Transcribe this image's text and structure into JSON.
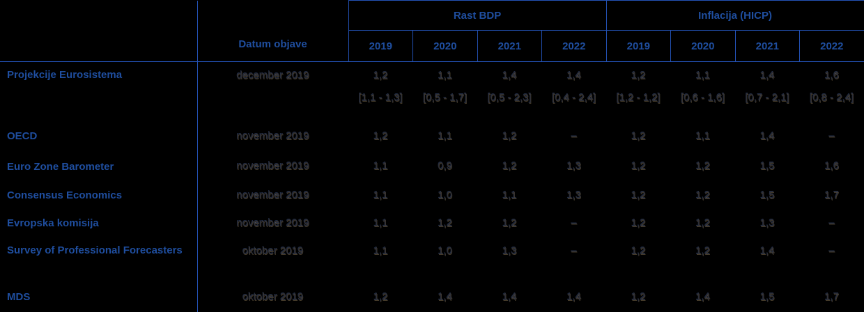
{
  "colors": {
    "background": "#000000",
    "grid_line_blue": "#2453B8",
    "header_text_blue": "#1F4E9F",
    "body_text_dark": "#2E2F36"
  },
  "chart_data": {
    "type": "table",
    "title": "",
    "header": {
      "datum_objave": "Datum objave",
      "groups": [
        {
          "label": "Rast BDP",
          "years": [
            "2019",
            "2020",
            "2021",
            "2022"
          ]
        },
        {
          "label": "Inflacija (HICP)",
          "years": [
            "2019",
            "2020",
            "2021",
            "2022"
          ]
        }
      ]
    },
    "rows": [
      {
        "label": "Projekcije Eurosistema",
        "date": "december 2019",
        "values": [
          "1,2",
          "1,1",
          "1,4",
          "1,4",
          "1,2",
          "1,1",
          "1,4",
          "1,6"
        ],
        "ranges": [
          "[1,1 - 1,3]",
          "[0,5 - 1,7]",
          "[0,5 - 2,3]",
          "[0,4 - 2,4]",
          "[1,2 - 1,2]",
          "[0,6 - 1,6]",
          "[0,7 - 2,1]",
          "[0,8 - 2,4]"
        ]
      },
      {
        "label": "OECD",
        "date": "november 2019",
        "values": [
          "1,2",
          "1,1",
          "1,2",
          "–",
          "1,2",
          "1,1",
          "1,4",
          "–"
        ]
      },
      {
        "label": "Euro Zone Barometer",
        "date": "november 2019",
        "values": [
          "1,1",
          "0,9",
          "1,2",
          "1,3",
          "1,2",
          "1,2",
          "1,5",
          "1,6"
        ]
      },
      {
        "label": "Consensus Economics",
        "date": "november 2019",
        "values": [
          "1,1",
          "1,0",
          "1,1",
          "1,3",
          "1,2",
          "1,2",
          "1,5",
          "1,7"
        ]
      },
      {
        "label": "Evropska komisija",
        "date": "november 2019",
        "values": [
          "1,1",
          "1,2",
          "1,2",
          "–",
          "1,2",
          "1,2",
          "1,3",
          "–"
        ]
      },
      {
        "label": "Survey of Professional Forecasters",
        "date": "oktober 2019",
        "values": [
          "1,1",
          "1,0",
          "1,3",
          "–",
          "1,2",
          "1,2",
          "1,4",
          "–"
        ]
      },
      {
        "label": "MDS",
        "date": "oktober 2019",
        "values": [
          "1,2",
          "1,4",
          "1,4",
          "1,4",
          "1,2",
          "1,4",
          "1,5",
          "1,7"
        ]
      }
    ]
  }
}
